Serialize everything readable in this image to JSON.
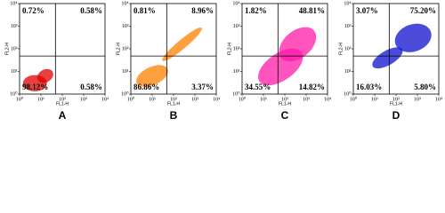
{
  "chart_data": [
    {
      "type": "scatter",
      "label": "A",
      "xlabel": "FL1-H",
      "ylabel": "FL2-H",
      "log_scale": true,
      "color": "#e00000",
      "xlim": [
        1,
        10000
      ],
      "ylim": [
        1,
        10000
      ],
      "xticks": [
        {
          "value": 1,
          "label": "10⁰"
        },
        {
          "value": 10,
          "label": "10¹"
        },
        {
          "value": 100,
          "label": "10²"
        },
        {
          "value": 1000,
          "label": "10³"
        },
        {
          "value": 10000,
          "label": "10⁴"
        }
      ],
      "yticks": [
        {
          "value": 1,
          "label": "10⁰"
        },
        {
          "value": 10,
          "label": "10¹"
        },
        {
          "value": 100,
          "label": "10²"
        },
        {
          "value": 1000,
          "label": "10³"
        },
        {
          "value": 10000,
          "label": "10⁴"
        }
      ],
      "quadrants": {
        "values": [
          0.72,
          0.58,
          98.12,
          0.58
        ],
        "value_labels": [
          "0.72%",
          "0.58%",
          "98.12%",
          "0.58%"
        ]
      }
    },
    {
      "type": "scatter",
      "label": "B",
      "xlabel": "FL1-H",
      "ylabel": "FL2-H",
      "log_scale": true,
      "color": "#ff8000",
      "xlim": [
        1,
        10000
      ],
      "ylim": [
        1,
        10000
      ],
      "xticks": [
        {
          "value": 1,
          "label": "10⁰"
        },
        {
          "value": 10,
          "label": "10¹"
        },
        {
          "value": 100,
          "label": "10²"
        },
        {
          "value": 1000,
          "label": "10³"
        },
        {
          "value": 10000,
          "label": "10⁴"
        }
      ],
      "yticks": [
        {
          "value": 1,
          "label": "10⁰"
        },
        {
          "value": 10,
          "label": "10¹"
        },
        {
          "value": 100,
          "label": "10²"
        },
        {
          "value": 1000,
          "label": "10³"
        },
        {
          "value": 10000,
          "label": "10⁴"
        }
      ],
      "quadrants": {
        "values": [
          0.81,
          8.96,
          86.86,
          3.37
        ],
        "value_labels": [
          "0.81%",
          "8.96%",
          "86.86%",
          "3.37%"
        ]
      }
    },
    {
      "type": "scatter",
      "label": "C",
      "xlabel": "FL1-H",
      "ylabel": "FL2-H",
      "log_scale": true,
      "color": "#ff1aa8",
      "xlim": [
        1,
        10000
      ],
      "ylim": [
        1,
        10000
      ],
      "xticks": [
        {
          "value": 1,
          "label": "10⁰"
        },
        {
          "value": 10,
          "label": "10¹"
        },
        {
          "value": 100,
          "label": "10²"
        },
        {
          "value": 1000,
          "label": "10³"
        },
        {
          "value": 10000,
          "label": "10⁴"
        }
      ],
      "yticks": [
        {
          "value": 1,
          "label": "10⁰"
        },
        {
          "value": 10,
          "label": "10¹"
        },
        {
          "value": 100,
          "label": "10²"
        },
        {
          "value": 1000,
          "label": "10³"
        },
        {
          "value": 10000,
          "label": "10⁴"
        }
      ],
      "quadrants": {
        "values": [
          1.82,
          48.81,
          34.55,
          14.82
        ],
        "value_labels": [
          "1.82%",
          "48.81%",
          "34.55%",
          "14.82%"
        ]
      }
    },
    {
      "type": "scatter",
      "label": "D",
      "xlabel": "FL1-H",
      "ylabel": "FL2-H",
      "log_scale": true,
      "color": "#1010d0",
      "xlim": [
        1,
        10000
      ],
      "ylim": [
        1,
        10000
      ],
      "xticks": [
        {
          "value": 1,
          "label": "10⁰"
        },
        {
          "value": 10,
          "label": "10¹"
        },
        {
          "value": 100,
          "label": "10²"
        },
        {
          "value": 1000,
          "label": "10³"
        },
        {
          "value": 10000,
          "label": "10⁴"
        }
      ],
      "yticks": [
        {
          "value": 1,
          "label": "10⁰"
        },
        {
          "value": 10,
          "label": "10¹"
        },
        {
          "value": 100,
          "label": "10²"
        },
        {
          "value": 1000,
          "label": "10³"
        },
        {
          "value": 10000,
          "label": "10⁴"
        }
      ],
      "quadrants": {
        "values": [
          3.07,
          75.2,
          16.03,
          5.8
        ],
        "value_labels": [
          "3.07%",
          "75.20%",
          "16.03%",
          "5.80%"
        ]
      }
    }
  ]
}
